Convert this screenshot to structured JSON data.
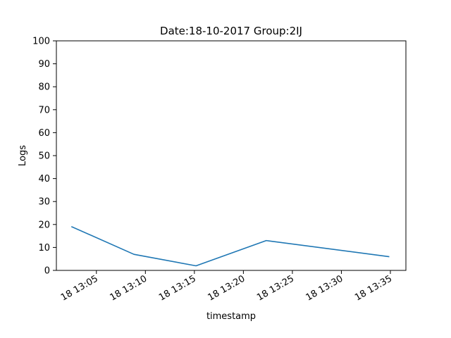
{
  "chart_data": {
    "type": "line",
    "title": "Date:18-10-2017  Group:2IJ",
    "xlabel": "timestamp",
    "ylabel": "Logs",
    "ylim": [
      0,
      100
    ],
    "xlim": [
      "2017-10-18 13:00:55",
      "2017-10-18 13:36:35"
    ],
    "yticks": [
      0,
      10,
      20,
      30,
      40,
      50,
      60,
      70,
      80,
      90,
      100
    ],
    "xticks": [
      {
        "time": "2017-10-18 13:05",
        "label": "18 13:05"
      },
      {
        "time": "2017-10-18 13:10",
        "label": "18 13:10"
      },
      {
        "time": "2017-10-18 13:15",
        "label": "18 13:15"
      },
      {
        "time": "2017-10-18 13:20",
        "label": "18 13:20"
      },
      {
        "time": "2017-10-18 13:25",
        "label": "18 13:25"
      },
      {
        "time": "2017-10-18 13:30",
        "label": "18 13:30"
      },
      {
        "time": "2017-10-18 13:35",
        "label": "18 13:35"
      }
    ],
    "grid": false,
    "series": [
      {
        "color": "#1f77b4",
        "x": [
          "2017-10-18 13:02:30",
          "2017-10-18 13:08:50",
          "2017-10-18 13:15:10",
          "2017-10-18 13:22:20",
          "2017-10-18 13:34:50"
        ],
        "y": [
          19,
          7,
          2,
          13,
          6
        ]
      }
    ]
  }
}
